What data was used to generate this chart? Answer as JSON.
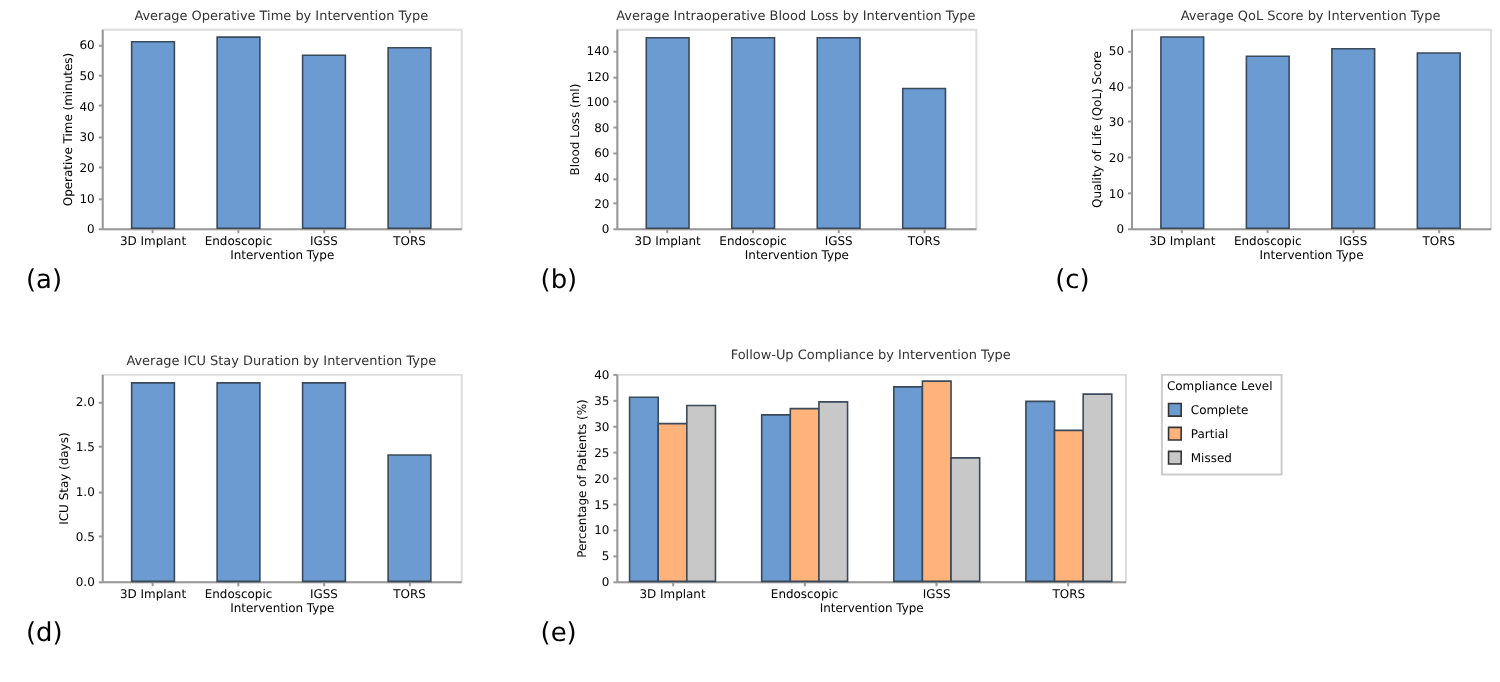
{
  "chart_data": [
    {
      "type": "bar",
      "title": "Average Operative Time by Intervention Type",
      "xlabel": "Intervention Type",
      "ylabel": "Operative Time (minutes)",
      "categories": [
        "3D Implant",
        "Endoscopic",
        "IGSS",
        "TORS"
      ],
      "values": [
        60.8,
        62.3,
        56.4,
        58.8
      ],
      "color": "#6b9bd0",
      "ylim": [
        0,
        65
      ],
      "yticks": [
        0,
        10,
        20,
        30,
        40,
        50,
        60
      ],
      "grid": false,
      "annotations": [
        "(a)"
      ]
    },
    {
      "type": "bar",
      "title": "Average Intraoperative Blood Loss by Intervention Type",
      "xlabel": "Intervention Type",
      "ylabel": "Blood Loss (ml)",
      "categories": [
        "3D Implant",
        "Endoscopic",
        "IGSS",
        "TORS"
      ],
      "values": [
        150,
        150,
        150,
        110
      ],
      "color": "#6b9bd0",
      "ylim": [
        0,
        157
      ],
      "yticks": [
        0,
        20,
        40,
        60,
        80,
        100,
        120,
        140
      ],
      "grid": false,
      "annotations": [
        "(b)"
      ]
    },
    {
      "type": "bar",
      "title": "Average QoL Score by Intervention Type",
      "xlabel": "Intervention Type",
      "ylabel": "Quality of Life (QoL) Score",
      "categories": [
        "3D Implant",
        "Endoscopic",
        "IGSS",
        "TORS"
      ],
      "values": [
        53.7,
        48.3,
        50.4,
        49.2
      ],
      "color": "#6b9bd0",
      "ylim": [
        0,
        56
      ],
      "yticks": [
        0,
        10,
        20,
        30,
        40,
        50
      ],
      "grid": false,
      "annotations": [
        "(c)"
      ]
    },
    {
      "type": "bar",
      "title": "Average ICU Stay Duration by Intervention Type",
      "xlabel": "Intervention Type",
      "ylabel": "ICU Stay (days)",
      "categories": [
        "3D Implant",
        "Endoscopic",
        "IGSS",
        "TORS"
      ],
      "values": [
        2.2,
        2.2,
        2.2,
        1.4
      ],
      "color": "#6b9bd0",
      "ylim": [
        0,
        2.3
      ],
      "yticks": [
        {
          "value": 0,
          "label": "0.0"
        },
        {
          "value": 0.5,
          "label": "0.5"
        },
        {
          "value": 1,
          "label": "1.0"
        },
        {
          "value": 1.5,
          "label": "1.5"
        },
        {
          "value": 2,
          "label": "2.0"
        }
      ],
      "grid": false,
      "annotations": [
        "(d)"
      ]
    },
    {
      "type": "bar",
      "title": "Follow-Up Compliance by Intervention Type",
      "xlabel": "Intervention Type",
      "ylabel": "Percentage of Patients (%)",
      "legend_title": "Compliance Level",
      "legend": "top right",
      "categories": [
        "3D Implant",
        "Endoscopic",
        "IGSS",
        "TORS"
      ],
      "series": [
        {
          "name": "Complete",
          "color": "#6b9bd0",
          "values": [
            35.5,
            32.1,
            37.5,
            34.7
          ]
        },
        {
          "name": "Partial",
          "color": "#ffb27a",
          "values": [
            30.4,
            33.3,
            38.6,
            29.1
          ]
        },
        {
          "name": "Missed",
          "color": "#c8c8c8",
          "values": [
            33.9,
            34.6,
            23.8,
            36.1
          ]
        }
      ],
      "ylim": [
        0,
        40
      ],
      "yticks": [
        0,
        5,
        10,
        15,
        20,
        25,
        30,
        35,
        40
      ],
      "grid": false,
      "annotations": [
        "(e)"
      ]
    }
  ]
}
